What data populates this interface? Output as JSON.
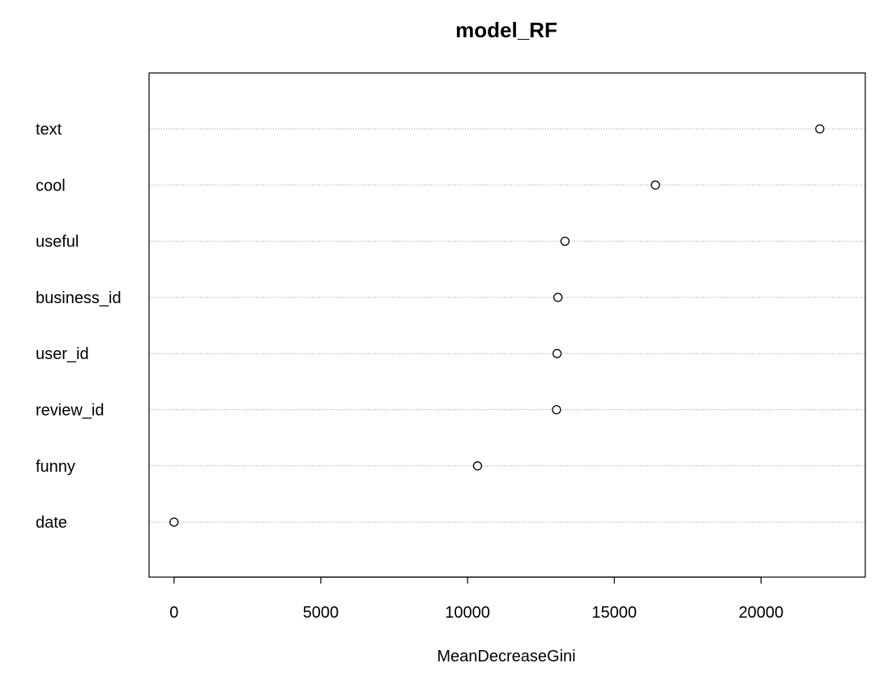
{
  "chart_data": {
    "type": "scatter",
    "title": "model_RF",
    "xlabel": "MeanDecreaseGini",
    "ylabel": "",
    "categories": [
      "text",
      "cool",
      "useful",
      "business_id",
      "user_id",
      "review_id",
      "funny",
      "date"
    ],
    "values": [
      22000,
      16400,
      13320,
      13080,
      13050,
      13030,
      10340,
      0
    ],
    "xlim": [
      -850,
      23550
    ],
    "xticks": [
      0,
      5000,
      10000,
      15000,
      20000
    ],
    "xtick_labels": [
      "0",
      "5000",
      "10000",
      "15000",
      "20000"
    ],
    "grid": "horizontal-dotted",
    "legend": "none"
  }
}
